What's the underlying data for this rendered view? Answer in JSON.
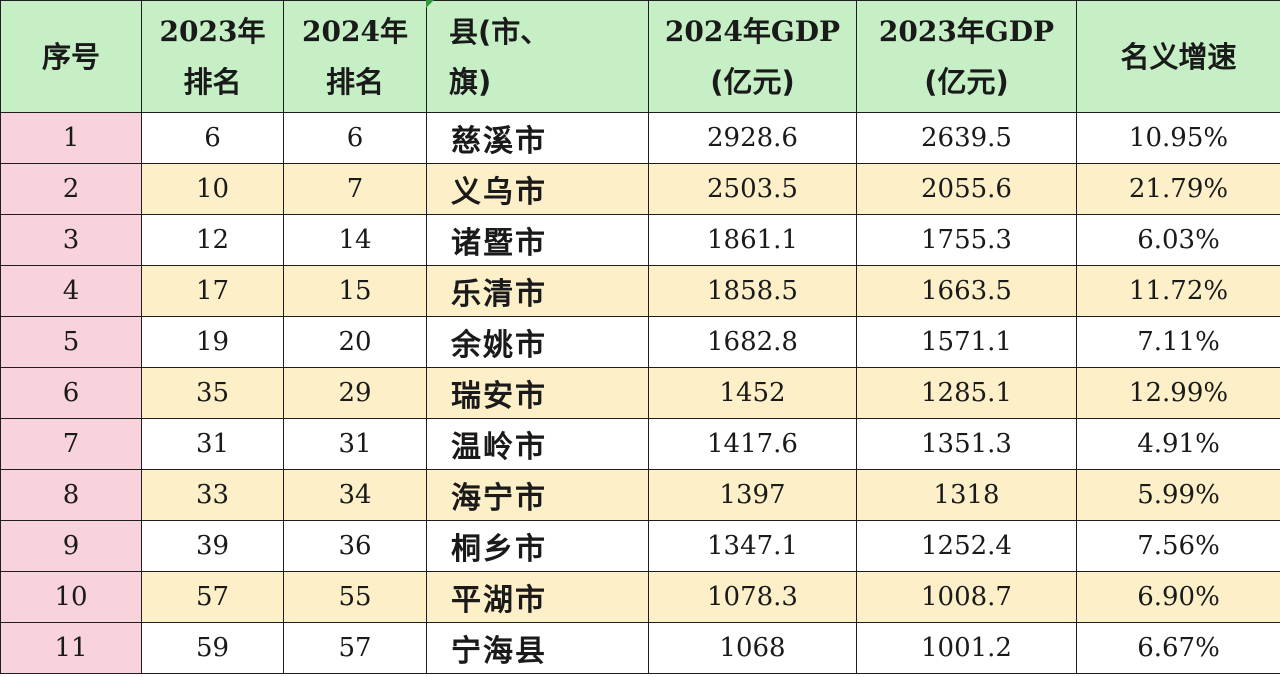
{
  "headers": [
    {
      "l1": "序号",
      "l2": ""
    },
    {
      "l1": "2023年",
      "l2": "排名"
    },
    {
      "l1": "2024年",
      "l2": "排名"
    },
    {
      "l1": "县(市、",
      "l2": "旗)"
    },
    {
      "l1": "2024年GDP",
      "l2": "(亿元)"
    },
    {
      "l1": "2023年GDP",
      "l2": "(亿元)"
    },
    {
      "l1": "名义增速",
      "l2": ""
    }
  ],
  "rows": [
    {
      "idx": "1",
      "rank2023": "6",
      "rank2024": "6",
      "county": "慈溪市",
      "gdp2024": "2928.6",
      "gdp2023": "2639.5",
      "growth": "10.95%"
    },
    {
      "idx": "2",
      "rank2023": "10",
      "rank2024": "7",
      "county": "义乌市",
      "gdp2024": "2503.5",
      "gdp2023": "2055.6",
      "growth": "21.79%"
    },
    {
      "idx": "3",
      "rank2023": "12",
      "rank2024": "14",
      "county": "诸暨市",
      "gdp2024": "1861.1",
      "gdp2023": "1755.3",
      "growth": "6.03%"
    },
    {
      "idx": "4",
      "rank2023": "17",
      "rank2024": "15",
      "county": "乐清市",
      "gdp2024": "1858.5",
      "gdp2023": "1663.5",
      "growth": "11.72%"
    },
    {
      "idx": "5",
      "rank2023": "19",
      "rank2024": "20",
      "county": "余姚市",
      "gdp2024": "1682.8",
      "gdp2023": "1571.1",
      "growth": "7.11%"
    },
    {
      "idx": "6",
      "rank2023": "35",
      "rank2024": "29",
      "county": "瑞安市",
      "gdp2024": "1452",
      "gdp2023": "1285.1",
      "growth": "12.99%"
    },
    {
      "idx": "7",
      "rank2023": "31",
      "rank2024": "31",
      "county": "温岭市",
      "gdp2024": "1417.6",
      "gdp2023": "1351.3",
      "growth": "4.91%"
    },
    {
      "idx": "8",
      "rank2023": "33",
      "rank2024": "34",
      "county": "海宁市",
      "gdp2024": "1397",
      "gdp2023": "1318",
      "growth": "5.99%"
    },
    {
      "idx": "9",
      "rank2023": "39",
      "rank2024": "36",
      "county": "桐乡市",
      "gdp2024": "1347.1",
      "gdp2023": "1252.4",
      "growth": "7.56%"
    },
    {
      "idx": "10",
      "rank2023": "57",
      "rank2024": "55",
      "county": "平湖市",
      "gdp2024": "1078.3",
      "gdp2023": "1008.7",
      "growth": "6.90%"
    },
    {
      "idx": "11",
      "rank2023": "59",
      "rank2024": "57",
      "county": "宁海县",
      "gdp2024": "1068",
      "gdp2023": "1001.2",
      "growth": "6.67%"
    }
  ],
  "colors": {
    "header_bg": "#c6efc6",
    "index_bg": "#f8d3db",
    "alt_row_bg": "#fdf0c9"
  }
}
